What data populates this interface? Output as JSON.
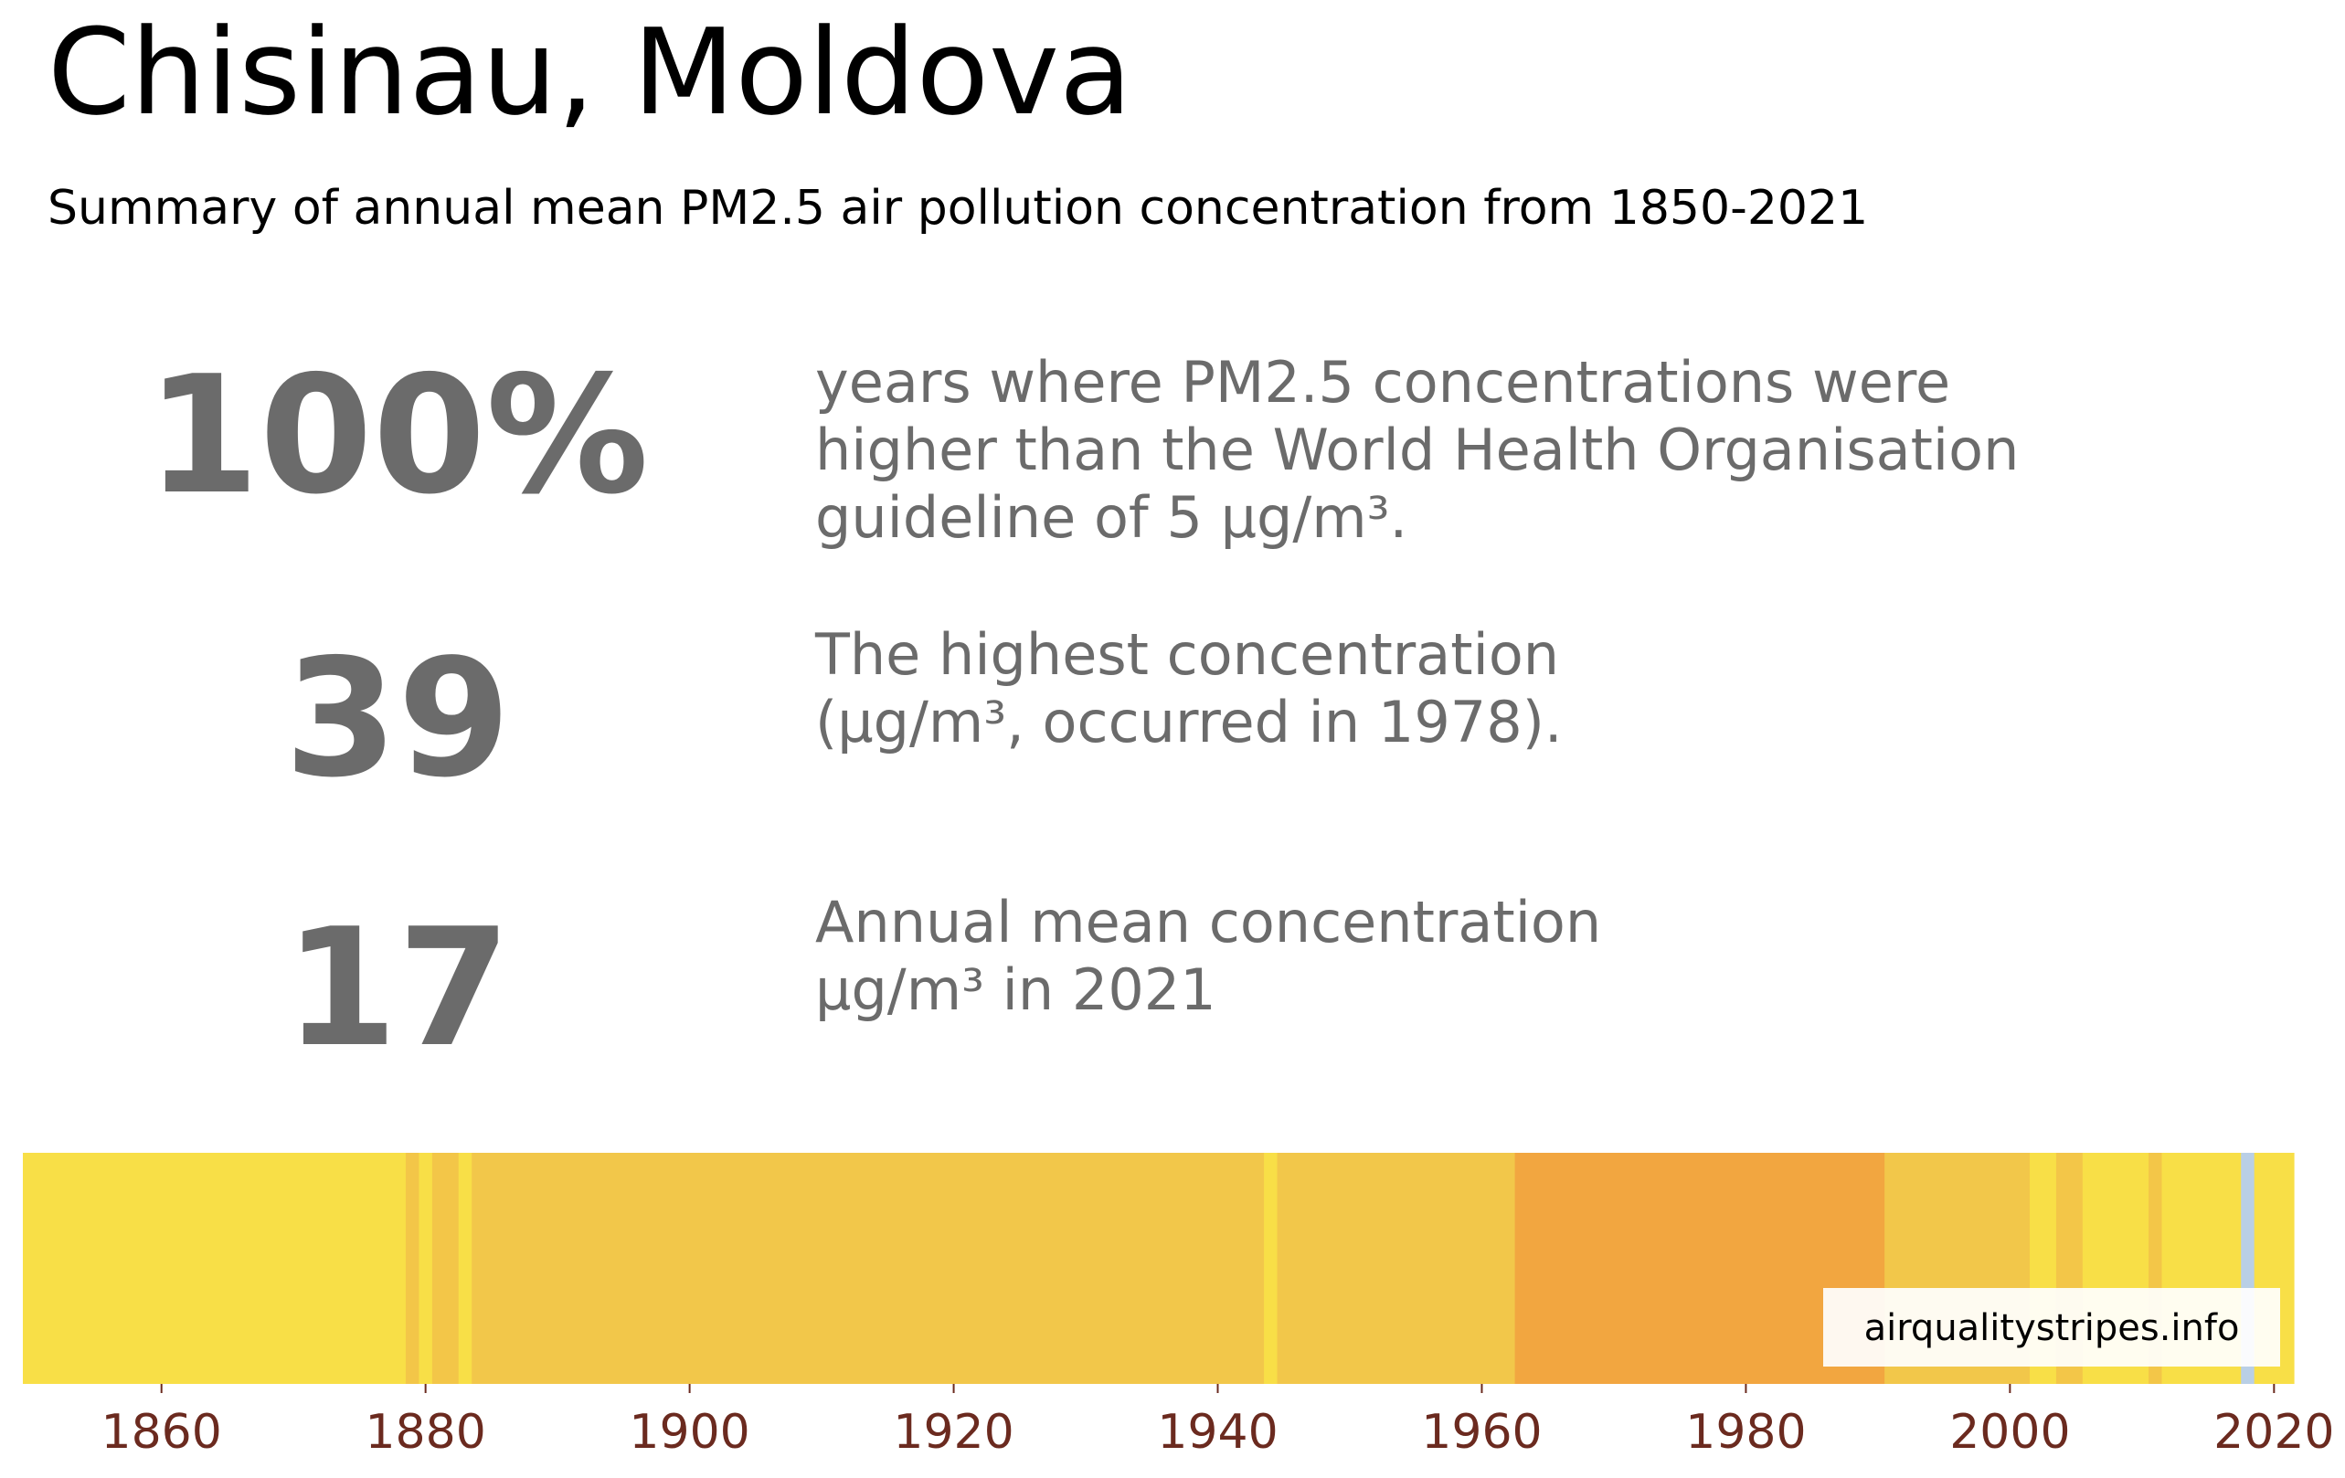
{
  "header": {
    "title": "Chisinau, Moldova",
    "subtitle": "Summary of annual mean PM2.5 air pollution concentration from 1850-2021"
  },
  "stats": [
    {
      "value": "100%",
      "desc_lines": [
        "years where PM2.5 concentrations were",
        "higher than the World Health Organisation",
        "guideline of 5 µg/m³."
      ]
    },
    {
      "value": "39",
      "desc_lines": [
        "The highest concentration",
        "(µg/m³, occurred in 1978)."
      ]
    },
    {
      "value": "17",
      "desc_lines": [
        "Annual mean concentration",
        "µg/m³ in 2021"
      ]
    }
  ],
  "watermark": "airqualitystripes.info",
  "chart_data": {
    "type": "heatmap",
    "title": "",
    "xlabel": "",
    "ylabel": "",
    "xlim": [
      1850,
      2022
    ],
    "x_ticks": [
      1860,
      1880,
      1900,
      1920,
      1940,
      1960,
      1980,
      2000,
      2020
    ],
    "tick_color": "#6b2a1f",
    "stripes": [
      {
        "from": 1850,
        "to": 1879,
        "color": "#f8df47"
      },
      {
        "from": 1879,
        "to": 1880,
        "color": "#f3c648"
      },
      {
        "from": 1880,
        "to": 1881,
        "color": "#f8df47"
      },
      {
        "from": 1881,
        "to": 1883,
        "color": "#f3c648"
      },
      {
        "from": 1883,
        "to": 1884,
        "color": "#f8df47"
      },
      {
        "from": 1884,
        "to": 1944,
        "color": "#f2c74a"
      },
      {
        "from": 1944,
        "to": 1945,
        "color": "#f8df47"
      },
      {
        "from": 1945,
        "to": 1963,
        "color": "#f2c74a"
      },
      {
        "from": 1963,
        "to": 1991,
        "color": "#f2a640"
      },
      {
        "from": 1991,
        "to": 2002,
        "color": "#f2c74a"
      },
      {
        "from": 2002,
        "to": 2004,
        "color": "#f8df47"
      },
      {
        "from": 2004,
        "to": 2006,
        "color": "#f3c648"
      },
      {
        "from": 2006,
        "to": 2011,
        "color": "#f8df47"
      },
      {
        "from": 2011,
        "to": 2012,
        "color": "#f3c648"
      },
      {
        "from": 2012,
        "to": 2018,
        "color": "#f8df47"
      },
      {
        "from": 2018,
        "to": 2019,
        "color": "#b9cfe6"
      },
      {
        "from": 2019,
        "to": 2022,
        "color": "#f8df47"
      }
    ]
  }
}
